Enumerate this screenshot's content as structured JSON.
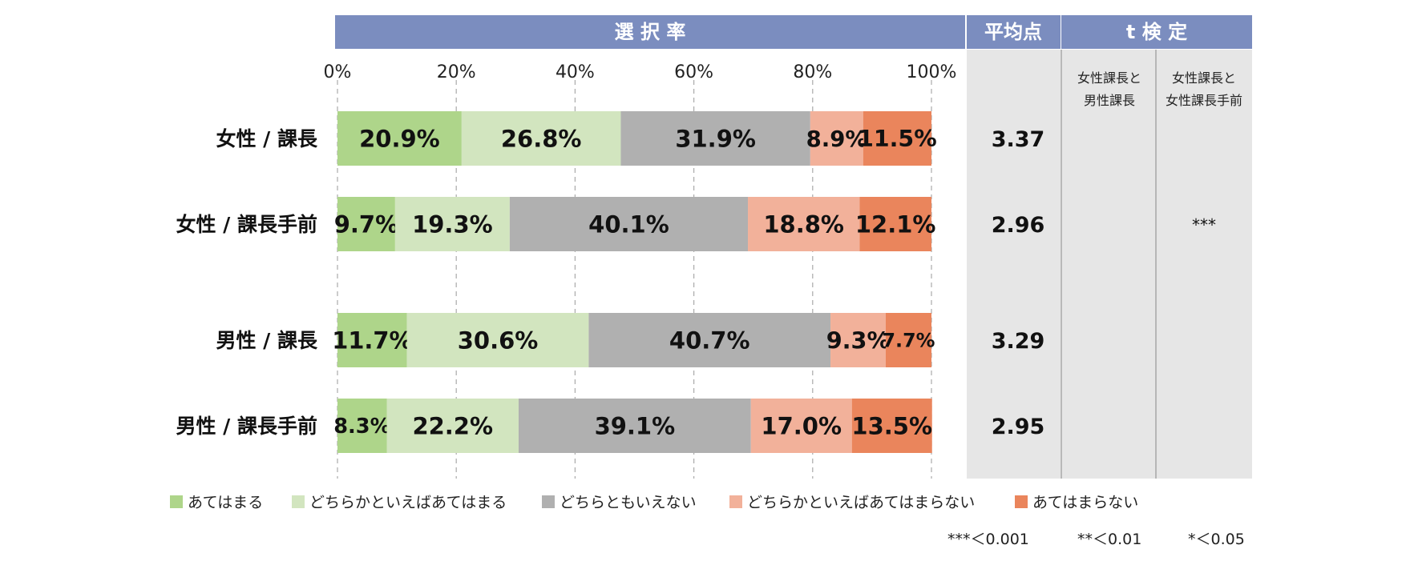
{
  "headers": {
    "selection": "選 択 率",
    "average": "平均点",
    "ttest": "t 検 定"
  },
  "ttest_columns": [
    {
      "line1": "女性課長と",
      "line2": "男性課長"
    },
    {
      "line1": "女性課長と",
      "line2": "女性課長手前"
    }
  ],
  "significance_note": [
    {
      "text": "***＜0.001"
    },
    {
      "text": "**＜0.01"
    },
    {
      "text": "*＜0.05"
    }
  ],
  "colors": {
    "header": "#7b8dbf",
    "panel": "#e6e6e6",
    "grid": "#aaaaaa",
    "divider": "#a6a6a6"
  },
  "chart_data": {
    "type": "bar",
    "orientation": "horizontal",
    "stacked": "percent",
    "title": "",
    "xlabel": "",
    "ylabel": "",
    "xlim": [
      0,
      100
    ],
    "ticks": [
      "0%",
      "20%",
      "40%",
      "60%",
      "80%",
      "100%"
    ],
    "grid": true,
    "legend_position": "bottom",
    "categories": [
      "女性 / 課長",
      "女性 / 課長手前",
      "男性 / 課長",
      "男性 / 課長手前"
    ],
    "series": [
      {
        "name": "あてはまる",
        "color": "#aed58a",
        "values": [
          20.9,
          9.7,
          11.7,
          8.3
        ]
      },
      {
        "name": "どちらかといえばあてはまる",
        "color": "#d2e5bf",
        "values": [
          26.8,
          19.3,
          30.6,
          22.2
        ]
      },
      {
        "name": "どちらともいえない",
        "color": "#b0b0b0",
        "values": [
          31.9,
          40.1,
          40.7,
          39.1
        ]
      },
      {
        "name": "どちらかといえばあてはまらない",
        "color": "#f2b19a",
        "values": [
          8.9,
          18.8,
          9.3,
          17.0
        ]
      },
      {
        "name": "あてはまらない",
        "color": "#ea855c",
        "values": [
          11.5,
          12.1,
          7.7,
          13.5
        ]
      }
    ],
    "averages": [
      "3.37",
      "2.96",
      "3.29",
      "2.95"
    ],
    "ttest_results": [
      [
        "",
        ""
      ],
      [
        "",
        "***"
      ],
      [
        "",
        ""
      ],
      [
        "",
        ""
      ]
    ]
  }
}
